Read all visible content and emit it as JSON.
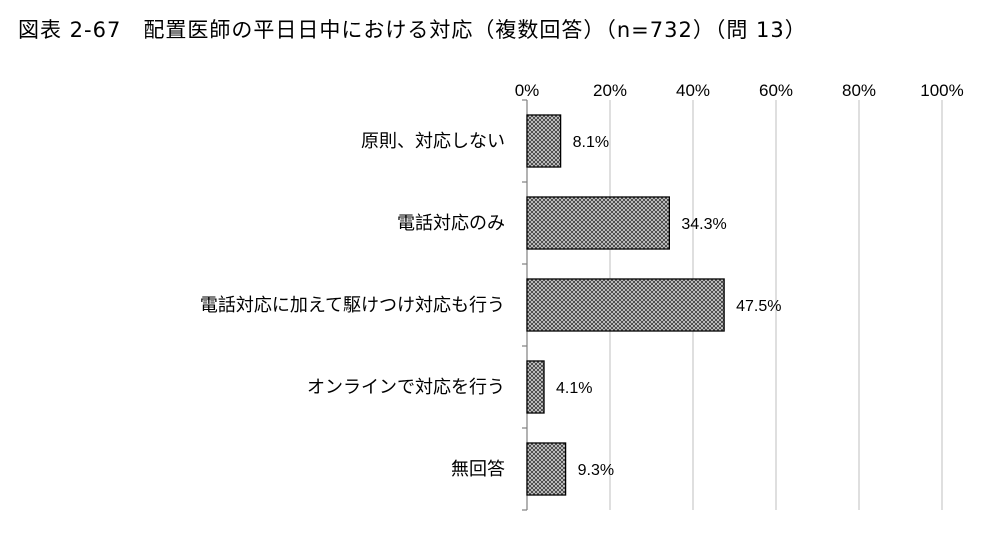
{
  "title": "図表 2-67　配置医師の平日日中における対応（複数回答）（n=732）（問 13）",
  "chart_data": {
    "type": "bar",
    "orientation": "horizontal",
    "title": "図表 2-67　配置医師の平日日中における対応（複数回答）（n=732）（問 13）",
    "categories": [
      "原則、対応しない",
      "電話対応のみ",
      "電話対応に加えて駆けつけ対応も行う",
      "オンラインで対応を行う",
      "無回答"
    ],
    "values": [
      8.1,
      34.3,
      47.5,
      4.1,
      9.3
    ],
    "data_labels": [
      "8.1%",
      "34.3%",
      "47.5%",
      "4.1%",
      "9.3%"
    ],
    "xlim": [
      0,
      100
    ],
    "xticks": [
      0,
      20,
      40,
      60,
      80,
      100
    ],
    "xtick_labels": [
      "0%",
      "20%",
      "40%",
      "60%",
      "80%",
      "100%"
    ],
    "xaxis_position": "top",
    "grid": true,
    "bar_fill": "crosshatch gray",
    "colors": {
      "bar_fill": "#9a9a9a",
      "bar_stroke": "#000000",
      "grid": "#bfbfbf",
      "axis": "#808080"
    }
  }
}
